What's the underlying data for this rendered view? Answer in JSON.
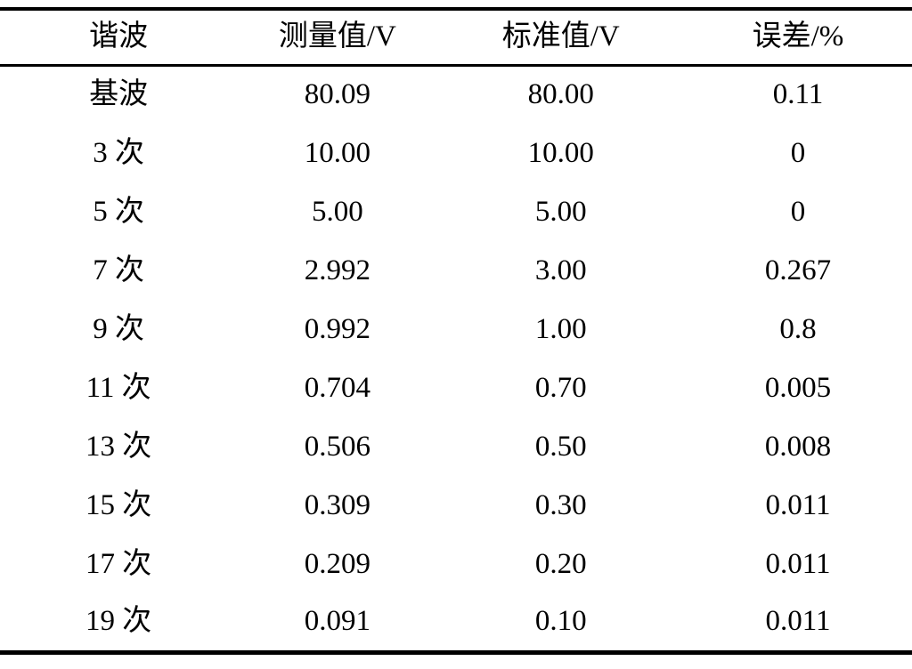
{
  "chart_data": {
    "type": "table",
    "columns": [
      "谐波",
      "测量值/V",
      "标准值/V",
      "误差/%"
    ],
    "rows": [
      [
        "基波",
        "80.09",
        "80.00",
        "0.11"
      ],
      [
        "3 次",
        "10.00",
        "10.00",
        "0"
      ],
      [
        "5 次",
        "5.00",
        "5.00",
        "0"
      ],
      [
        "7 次",
        "2.992",
        "3.00",
        "0.267"
      ],
      [
        "9 次",
        "0.992",
        "1.00",
        "0.8"
      ],
      [
        "11 次",
        "0.704",
        "0.70",
        "0.005"
      ],
      [
        "13 次",
        "0.506",
        "0.50",
        "0.008"
      ],
      [
        "15 次",
        "0.309",
        "0.30",
        "0.011"
      ],
      [
        "17 次",
        "0.209",
        "0.20",
        "0.011"
      ],
      [
        "19 次",
        "0.091",
        "0.10",
        "0.011"
      ]
    ]
  },
  "colors": {
    "text": "#000000",
    "background": "#ffffff",
    "rule": "#000000"
  }
}
